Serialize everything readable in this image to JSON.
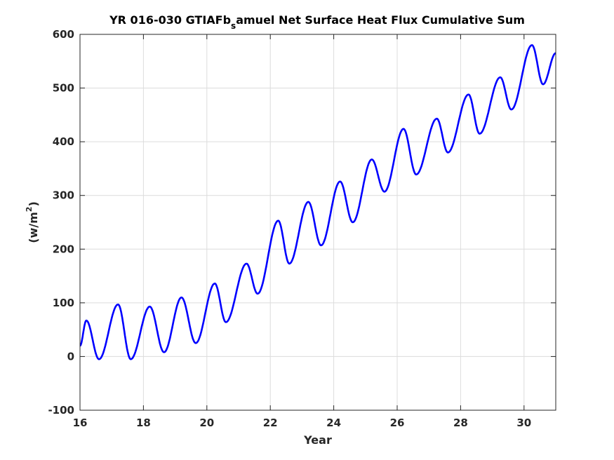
{
  "chart_data": {
    "type": "line",
    "title": {
      "prefix": "YR 016-030 GTIAFb",
      "subscript": "s",
      "suffix": "amuel Net Surface Heat Flux  Cumulative Sum"
    },
    "xlabel": "Year",
    "ylabel": {
      "base": "(w/m",
      "superscript": "2",
      "close": ")"
    },
    "xlim": [
      16,
      31
    ],
    "ylim": [
      -100,
      600
    ],
    "xticks": [
      16,
      18,
      20,
      22,
      24,
      26,
      28,
      30
    ],
    "yticks": [
      -100,
      0,
      100,
      200,
      300,
      400,
      500,
      600
    ],
    "xtick_labels": [
      "16",
      "18",
      "20",
      "22",
      "24",
      "26",
      "28",
      "30"
    ],
    "ytick_labels": [
      "-100",
      "0",
      "100",
      "200",
      "300",
      "400",
      "500",
      "600"
    ],
    "grid": true,
    "line_color": "#0000ff",
    "series": [
      {
        "x": [
          16.0,
          16.2,
          16.6,
          17.2,
          17.6,
          18.2,
          18.65,
          19.2,
          19.65,
          20.25,
          20.6,
          21.25,
          21.6,
          22.25,
          22.6,
          23.2,
          23.6,
          24.2,
          24.6,
          25.2,
          25.6,
          26.2,
          26.6,
          27.25,
          27.6,
          28.25,
          28.6,
          29.25,
          29.6,
          30.25,
          30.6,
          31.0
        ],
        "y": [
          20,
          67,
          -5,
          97,
          -5,
          93,
          8,
          110,
          25,
          136,
          64,
          173,
          117,
          253,
          173,
          288,
          207,
          326,
          250,
          367,
          307,
          424,
          339,
          443,
          380,
          488,
          415,
          520,
          460,
          580,
          507,
          565
        ]
      }
    ]
  }
}
